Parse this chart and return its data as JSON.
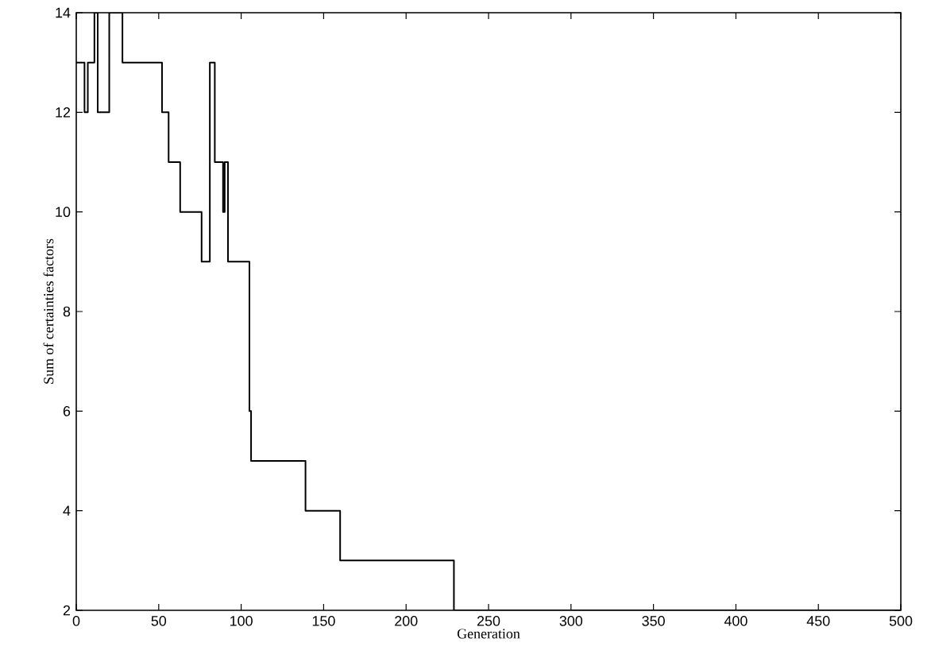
{
  "chart_data": {
    "type": "step",
    "xlabel": "Generation",
    "ylabel": "Sum of certainties factors",
    "x": [
      0,
      5,
      7,
      11,
      13,
      20,
      28,
      52,
      56,
      63,
      76,
      81,
      84,
      89,
      90,
      92,
      105,
      106,
      139,
      160,
      229,
      500
    ],
    "values": [
      13,
      12,
      13,
      14,
      12,
      14,
      13,
      12,
      11,
      10,
      9,
      13,
      11,
      10,
      11,
      9,
      6,
      5,
      4,
      3,
      2,
      2
    ],
    "color": "#000000",
    "xlim": [
      0,
      500
    ],
    "ylim": [
      2,
      14
    ],
    "xticks": [
      0,
      50,
      100,
      150,
      200,
      250,
      300,
      350,
      400,
      450,
      500
    ],
    "yticks": [
      2,
      4,
      6,
      8,
      10,
      12,
      14
    ],
    "grid": false
  }
}
